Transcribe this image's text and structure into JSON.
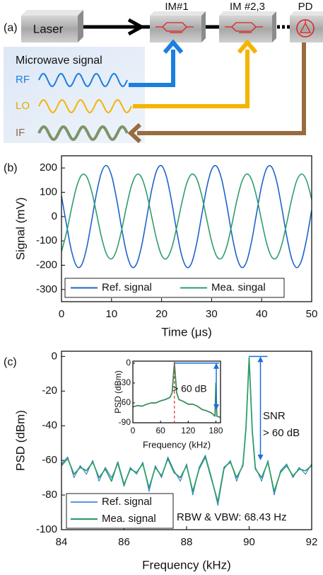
{
  "diagram": {
    "panel_label": "(a)",
    "laser": "Laser",
    "modulator_1": "IM#1",
    "modulator_2": "IM #2,3",
    "detector": "PD",
    "signal_box": "Microwave signal",
    "rf": "RF",
    "lo": "LO",
    "if": "IF"
  },
  "chart_data": [
    {
      "type": "line",
      "panel_label": "(b)",
      "x_label": "Time (μs)",
      "y_label": "Signal (mV)",
      "x": [
        0,
        1,
        2,
        3,
        4,
        5,
        6,
        7,
        8,
        9,
        10,
        11,
        12,
        13,
        14,
        15,
        16,
        17,
        18,
        19,
        20,
        21,
        22,
        23,
        24,
        25,
        26,
        27,
        28,
        29,
        30,
        31,
        32,
        33,
        34,
        35,
        36,
        37,
        38,
        39,
        40,
        41,
        42,
        43,
        44,
        45,
        46,
        47,
        48,
        49,
        50
      ],
      "series": [
        {
          "name": "Ref. signal",
          "color": "#1f63c9",
          "values": [
            85,
            -33,
            -141,
            -203,
            -200,
            -132,
            -21,
            96,
            182,
            210,
            169,
            74,
            -45,
            -150,
            -206,
            -195,
            -122,
            -9,
            107,
            188,
            209,
            162,
            63,
            -57,
            -158,
            -208,
            -191,
            -112,
            3,
            117,
            193,
            207,
            154,
            51,
            -68,
            -165,
            -209,
            -185,
            -101,
            15,
            127,
            198,
            204,
            145,
            39,
            -80,
            -173,
            -210,
            -179,
            -91,
            27
          ]
        },
        {
          "name": "Mea. singal",
          "color": "#2f9e6a",
          "values": [
            -144,
            -66,
            33,
            121,
            170,
            165,
            106,
            13,
            -85,
            -154,
            -174,
            -138,
            -57,
            42,
            128,
            172,
            161,
            97,
            2,
            -93,
            -159,
            -173,
            -131,
            -47,
            52,
            135,
            174,
            157,
            89,
            -8,
            -102,
            -163,
            -171,
            -125,
            -37,
            62,
            141,
            175,
            152,
            80,
            -18,
            -110,
            -166,
            -169,
            -117,
            -28,
            71,
            147,
            175,
            147,
            71
          ]
        }
      ],
      "xlim": [
        0,
        50
      ],
      "xticks": [
        0,
        10,
        20,
        30,
        40,
        50
      ],
      "ylim": [
        -350,
        250
      ],
      "yticks": [
        -300,
        -200,
        -100,
        0,
        100,
        200
      ],
      "grid": false,
      "legend": "lower left"
    },
    {
      "type": "line",
      "panel_label": "(c)",
      "x_label": "Frequency (kHz)",
      "y_label": "PSD (dBm)",
      "x": [
        84,
        84.2,
        84.4,
        84.6,
        84.8,
        85,
        85.2,
        85.4,
        85.6,
        85.8,
        86,
        86.2,
        86.4,
        86.6,
        86.8,
        87,
        87.2,
        87.4,
        87.6,
        87.8,
        88,
        88.2,
        88.4,
        88.6,
        88.8,
        89,
        89.2,
        89.4,
        89.6,
        89.8,
        89.9,
        90,
        90.1,
        90.2,
        90.4,
        90.6,
        90.8,
        91,
        91.2,
        91.4,
        91.6,
        91.8,
        92
      ],
      "series": [
        {
          "name": "Ref. signal",
          "color": "#2a6fd6",
          "values": [
            -62,
            -58,
            -70,
            -63,
            -68,
            -60,
            -72,
            -64,
            -70,
            -62,
            -75,
            -64,
            -68,
            -61,
            -78,
            -63,
            -70,
            -58,
            -66,
            -72,
            -62,
            -80,
            -64,
            -57,
            -70,
            -86,
            -65,
            -60,
            -72,
            -62,
            -40,
            0,
            -42,
            -64,
            -72,
            -60,
            -80,
            -66,
            -62,
            -70,
            -64,
            -68,
            -62
          ]
        },
        {
          "name": "Mea. signal",
          "color": "#2f9e6a",
          "values": [
            -63,
            -59,
            -68,
            -64,
            -66,
            -61,
            -70,
            -65,
            -72,
            -61,
            -74,
            -65,
            -67,
            -62,
            -76,
            -64,
            -69,
            -59,
            -67,
            -70,
            -63,
            -78,
            -65,
            -58,
            -71,
            -84,
            -64,
            -61,
            -70,
            -63,
            -41,
            -1,
            -43,
            -65,
            -70,
            -61,
            -78,
            -67,
            -63,
            -69,
            -65,
            -66,
            -63
          ]
        }
      ],
      "xlim": [
        84,
        92
      ],
      "xticks": [
        84,
        86,
        88,
        90,
        92
      ],
      "ylim": [
        -100,
        3
      ],
      "yticks": [
        -100,
        -80,
        -60,
        -40,
        -20,
        0
      ],
      "grid": false,
      "legend": "lower left",
      "annotations": [
        "SNR",
        "> 60 dB",
        "RBW & VBW: 68.43 Hz"
      ]
    },
    {
      "type": "line",
      "x_label": "Frequency (kHz)",
      "y_label": "PSD (dBm)",
      "x": [
        0,
        10,
        20,
        30,
        40,
        50,
        60,
        70,
        80,
        85,
        90,
        95,
        100,
        110,
        120,
        130,
        140,
        150,
        160,
        170,
        178,
        180,
        182,
        190
      ],
      "series": [
        {
          "color": "#3c8f5e",
          "values": [
            -66,
            -64,
            -65,
            -62,
            -60,
            -60,
            -57,
            -55,
            -52,
            -45,
            0,
            -45,
            -55,
            -58,
            -62,
            -62,
            -65,
            -70,
            -72,
            -75,
            -80,
            -30,
            -80,
            -82
          ]
        }
      ],
      "xlim": [
        0,
        190
      ],
      "xticks": [
        0,
        60,
        120,
        180
      ],
      "ylim": [
        -90,
        3
      ],
      "yticks": [
        -90,
        -60,
        -30,
        0
      ],
      "grid": false,
      "annotations": [
        "> 60 dB"
      ]
    }
  ]
}
